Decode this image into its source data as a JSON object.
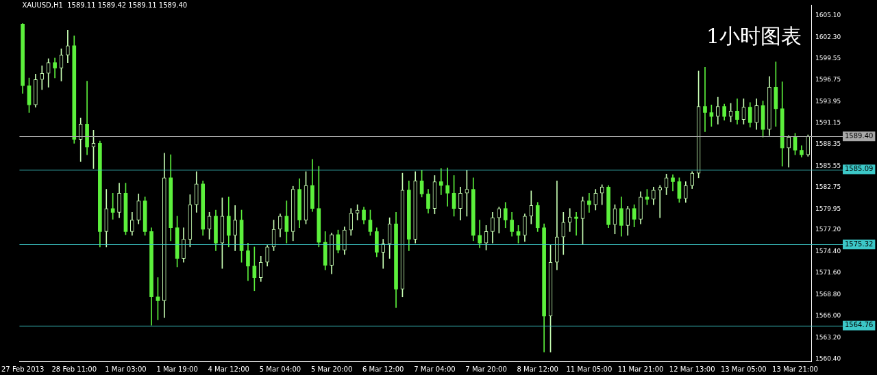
{
  "chart_data": {
    "type": "candlestick",
    "title": "XAUUSD,H1  1589.11 1589.42 1589.11 1589.40",
    "annotations": [
      "1小时图表"
    ],
    "colors": [
      "#5cf03c",
      "#5cf03c",
      "#c8ffb4",
      "#c8ffb4",
      "#c8ffb4",
      "#5cf03c",
      "#c8ffb4",
      "#c8ffb4",
      "#5cf03c",
      "#c8ffb4",
      "#5cf03c",
      "#c8ffb4",
      "#5cf03c",
      "#c8ffb4",
      "#5cf03c",
      "#c8ffb4",
      "#5cf03c",
      "#c8ffb4",
      "#c8ffb4",
      "#5cf03c",
      "#5cf03c",
      "#5cf03c",
      "#c8ffb4",
      "#5cf03c",
      "#5cf03c",
      "#c8ffb4",
      "#c8ffb4",
      "#c8ffb4",
      "#5cf03c",
      "#c8ffb4",
      "#5cf03c",
      "#c8ffb4",
      "#5cf03c",
      "#c8ffb4",
      "#5cf03c",
      "#5cf03c",
      "#5cf03c",
      "#c8ffb4",
      "#c8ffb4",
      "#c8ffb4",
      "#c8ffb4",
      "#5cf03c",
      "#c8ffb4",
      "#5cf03c",
      "#c8ffb4",
      "#5cf03c",
      "#5cf03c",
      "#5cf03c",
      "#c8ffb4",
      "#5cf03c",
      "#c8ffb4",
      "#c8ffb4",
      "#c8ffb4",
      "#5cf03c",
      "#5cf03c",
      "#5cf03c",
      "#c8ffb4",
      "#c8ffb4",
      "#5cf03c",
      "#c8ffb4",
      "#5cf03c",
      "#c8ffb4",
      "#5cf03c",
      "#5cf03c",
      "#c8ffb4",
      "#5cf03c",
      "#5cf03c",
      "#5cf03c",
      "#c8ffb4",
      "#c8ffb4",
      "#5cf03c",
      "#5cf03c",
      "#c8ffb4",
      "#c8ffb4",
      "#c8ffb4",
      "#5cf03c",
      "#5cf03c",
      "#5cf03c",
      "#c8ffb4",
      "#c8ffb4",
      "#5cf03c",
      "#5cf03c",
      "#c8ffb4",
      "#c8ffb4",
      "#c8ffb4",
      "#c8ffb4",
      "#5cf03c",
      "#c8ffb4",
      "#5cf03c",
      "#c8ffb4",
      "#c8ffb4",
      "#5cf03c",
      "#c8ffb4",
      "#5cf03c",
      "#c8ffb4",
      "#5cf03c",
      "#c8ffb4",
      "#5cf03c",
      "#c8ffb4",
      "#c8ffb4",
      "#c8ffb4",
      "#5cf03c",
      "#5cf03c",
      "#c8ffb4",
      "#c8ffb4",
      "#c8ffb4",
      "#5cf03c",
      "#5cf03c",
      "#c8ffb4",
      "#5cf03c",
      "#c8ffb4",
      "#5cf03c",
      "#c8ffb4",
      "#5cf03c",
      "#c8ffb4",
      "#5cf03c",
      "#c8ffb4",
      "#5cf03c",
      "#5cf03c",
      "#c8ffb4",
      "#5cf03c",
      "#5cf03c",
      "#c8ffb4"
    ],
    "categories": [
      "27 Feb 2013",
      null,
      null,
      null,
      null,
      null,
      null,
      null,
      "28 Feb 11:00",
      null,
      null,
      null,
      null,
      null,
      null,
      null,
      "1 Mar 03:00",
      null,
      null,
      null,
      null,
      null,
      null,
      null,
      "1 Mar 19:00",
      null,
      null,
      null,
      null,
      null,
      null,
      null,
      "4 Mar 12:00",
      null,
      null,
      null,
      null,
      null,
      null,
      null,
      "5 Mar 04:00",
      null,
      null,
      null,
      null,
      null,
      null,
      null,
      "5 Mar 20:00",
      null,
      null,
      null,
      null,
      null,
      null,
      null,
      "6 Mar 12:00",
      null,
      null,
      null,
      null,
      null,
      null,
      null,
      "7 Mar 04:00",
      null,
      null,
      null,
      null,
      null,
      null,
      null,
      "7 Mar 20:00",
      null,
      null,
      null,
      null,
      null,
      null,
      null,
      "8 Mar 12:00",
      null,
      null,
      null,
      null,
      null,
      null,
      null,
      "11 Mar 05:00",
      null,
      null,
      null,
      null,
      null,
      null,
      null,
      "11 Mar 21:00",
      null,
      null,
      null,
      null,
      null,
      null,
      null,
      "12 Mar 13:00",
      null,
      null,
      null,
      null,
      null,
      null,
      null,
      "13 Mar 05:00",
      null,
      null,
      null,
      null,
      null,
      null,
      null,
      "13 Mar 21:00",
      null,
      null
    ],
    "ohlc": [
      [
        1604,
        1604.1,
        1595,
        1596
      ],
      [
        1596,
        1597,
        1592.5,
        1593.5
      ],
      [
        1593.5,
        1597.5,
        1593.2,
        1596.8
      ],
      [
        1596.8,
        1598.6,
        1595.5,
        1597.6
      ],
      [
        1597.6,
        1599.5,
        1595.8,
        1599
      ],
      [
        1599,
        1599.6,
        1597,
        1598.3
      ],
      [
        1598.3,
        1600.8,
        1596.6,
        1600
      ],
      [
        1600,
        1603.2,
        1599,
        1601.2
      ],
      [
        1601.2,
        1602.5,
        1588.5,
        1589
      ],
      [
        1589,
        1591.8,
        1586.1,
        1591
      ],
      [
        1591,
        1596.6,
        1587,
        1588
      ],
      [
        1588,
        1590.2,
        1585.2,
        1588.5
      ],
      [
        1588.5,
        1588.8,
        1575,
        1577
      ],
      [
        1577,
        1582.5,
        1575,
        1580
      ],
      [
        1580,
        1582,
        1578.6,
        1579.5
      ],
      [
        1579.5,
        1583.3,
        1578.8,
        1582
      ],
      [
        1582,
        1583.3,
        1576.6,
        1577
      ],
      [
        1577,
        1579.5,
        1576.5,
        1578.5
      ],
      [
        1578.5,
        1581.9,
        1578,
        1581
      ],
      [
        1581,
        1581.5,
        1576.5,
        1577
      ],
      [
        1577,
        1577.5,
        1564.8,
        1568.5
      ],
      [
        1568.5,
        1571,
        1565.5,
        1568
      ],
      [
        1568,
        1587.2,
        1565.8,
        1584
      ],
      [
        1584,
        1587,
        1575.8,
        1577.5
      ],
      [
        1577.5,
        1579,
        1572.4,
        1573.5
      ],
      [
        1573.5,
        1577.5,
        1573,
        1576
      ],
      [
        1576,
        1581.8,
        1575,
        1580.5
      ],
      [
        1580.5,
        1584.8,
        1579.5,
        1583.2
      ],
      [
        1583.2,
        1583.6,
        1576.5,
        1577.3
      ],
      [
        1577.3,
        1579.5,
        1576,
        1579
      ],
      [
        1579,
        1579.8,
        1574.5,
        1575.5
      ],
      [
        1575.5,
        1581.4,
        1572.2,
        1579
      ],
      [
        1579,
        1581.5,
        1575,
        1576.5
      ],
      [
        1576.5,
        1580.4,
        1574.5,
        1578.5
      ],
      [
        1578.5,
        1579.8,
        1573,
        1574.5
      ],
      [
        1574.5,
        1575.5,
        1570.6,
        1572.5
      ],
      [
        1572.5,
        1575,
        1569.3,
        1571
      ],
      [
        1571,
        1573.8,
        1570.5,
        1573
      ],
      [
        1573,
        1575.2,
        1572.5,
        1575
      ],
      [
        1575,
        1578.5,
        1574.5,
        1577.3
      ],
      [
        1577.3,
        1579.3,
        1576.3,
        1579
      ],
      [
        1579,
        1581,
        1575.5,
        1577
      ],
      [
        1577,
        1582.9,
        1575.8,
        1582.5
      ],
      [
        1582.5,
        1583.9,
        1577.5,
        1578.5
      ],
      [
        1578.5,
        1584.8,
        1578,
        1583
      ],
      [
        1583,
        1586.4,
        1579.6,
        1580
      ],
      [
        1580,
        1585.5,
        1575,
        1575.6
      ],
      [
        1575.6,
        1577,
        1572,
        1572.6
      ],
      [
        1572.6,
        1576.8,
        1571.5,
        1576.6
      ],
      [
        1576.6,
        1577.2,
        1574.2,
        1574.6
      ],
      [
        1574.6,
        1577.6,
        1574,
        1577.2
      ],
      [
        1577.2,
        1580,
        1576.5,
        1579.4
      ],
      [
        1579.4,
        1580.5,
        1578.5,
        1579.8
      ],
      [
        1579.8,
        1580.2,
        1578,
        1578.5
      ],
      [
        1578.5,
        1579.8,
        1576.5,
        1577
      ],
      [
        1577,
        1577.5,
        1573.7,
        1574.3
      ],
      [
        1574.3,
        1576,
        1572.2,
        1575.4
      ],
      [
        1575.4,
        1578.8,
        1573.5,
        1578
      ],
      [
        1578,
        1579.5,
        1567.1,
        1569.5
      ],
      [
        1569.5,
        1584.6,
        1568.5,
        1582.4
      ],
      [
        1582.4,
        1583.6,
        1574.5,
        1576
      ],
      [
        1576,
        1584.8,
        1575.5,
        1583.6
      ],
      [
        1583.6,
        1585,
        1581.5,
        1581.9
      ],
      [
        1581.9,
        1582.5,
        1579.4,
        1580
      ],
      [
        1580,
        1584.3,
        1579.3,
        1583.5
      ],
      [
        1583.5,
        1585.2,
        1581.8,
        1583
      ],
      [
        1583,
        1585.3,
        1580.3,
        1582
      ],
      [
        1582,
        1584.3,
        1579,
        1580
      ],
      [
        1580,
        1582.8,
        1578.5,
        1582
      ],
      [
        1582,
        1585,
        1579,
        1582.5
      ],
      [
        1582.5,
        1584,
        1575.8,
        1576.5
      ],
      [
        1576.5,
        1578.5,
        1574.9,
        1575.5
      ],
      [
        1575.5,
        1577.8,
        1574.6,
        1577
      ],
      [
        1577,
        1579.5,
        1575.5,
        1578.8
      ],
      [
        1578.8,
        1580.2,
        1576.8,
        1580
      ],
      [
        1580,
        1580.8,
        1577.5,
        1578.5
      ],
      [
        1578.5,
        1579.5,
        1576.4,
        1577
      ],
      [
        1577,
        1577.8,
        1575.5,
        1576.5
      ],
      [
        1576.5,
        1579.3,
        1575.7,
        1579
      ],
      [
        1579,
        1582.3,
        1578,
        1580.4
      ],
      [
        1580.4,
        1580.8,
        1577,
        1577.5
      ],
      [
        1577.5,
        1578,
        1561.3,
        1566
      ],
      [
        1566,
        1575.3,
        1561.3,
        1573
      ],
      [
        1573,
        1583.6,
        1572,
        1576.3
      ],
      [
        1576.3,
        1579.5,
        1574,
        1578.2
      ],
      [
        1578.2,
        1580,
        1577,
        1578.9
      ],
      [
        1578.9,
        1579.5,
        1576.5,
        1578.7
      ],
      [
        1578.7,
        1581.5,
        1575.3,
        1581
      ],
      [
        1581,
        1582,
        1579.5,
        1580.5
      ],
      [
        1580.5,
        1582.5,
        1579.8,
        1582
      ],
      [
        1582,
        1583.1,
        1580.5,
        1582.8
      ],
      [
        1582.8,
        1583,
        1577.5,
        1577.9
      ],
      [
        1577.9,
        1580.5,
        1576.7,
        1580
      ],
      [
        1580,
        1581.5,
        1576.4,
        1577.8
      ],
      [
        1577.8,
        1580.3,
        1576.5,
        1580
      ],
      [
        1580,
        1580.5,
        1577.6,
        1578.6
      ],
      [
        1578.6,
        1582.2,
        1578,
        1581.5
      ],
      [
        1581.5,
        1582.5,
        1580.5,
        1581.2
      ],
      [
        1581.2,
        1582.8,
        1580.5,
        1582.4
      ],
      [
        1582.4,
        1583,
        1578.8,
        1582.7
      ],
      [
        1582.7,
        1584.5,
        1581.8,
        1584
      ],
      [
        1584,
        1584.4,
        1582.3,
        1583.5
      ],
      [
        1583.5,
        1584,
        1580.8,
        1581.3
      ],
      [
        1581.3,
        1583.5,
        1580.8,
        1583
      ],
      [
        1583,
        1584.8,
        1582.6,
        1584.6
      ],
      [
        1584.6,
        1597.9,
        1584,
        1593.3
      ],
      [
        1593.3,
        1598.4,
        1590,
        1592.5
      ],
      [
        1592.5,
        1593.5,
        1590.7,
        1592
      ],
      [
        1592,
        1594.5,
        1591,
        1593.3
      ],
      [
        1593.3,
        1593.6,
        1591.5,
        1592
      ],
      [
        1592,
        1593.7,
        1591.3,
        1592.7
      ],
      [
        1592.7,
        1594.3,
        1591,
        1591.6
      ],
      [
        1591.6,
        1594.3,
        1591,
        1593.2
      ],
      [
        1593.2,
        1593.8,
        1590.6,
        1591.2
      ],
      [
        1591.2,
        1594.3,
        1590.3,
        1593.4
      ],
      [
        1593.4,
        1594,
        1589.3,
        1590.3
      ],
      [
        1590.3,
        1597.2,
        1589.5,
        1595.8
      ],
      [
        1595.8,
        1599.1,
        1590.7,
        1593
      ],
      [
        1593,
        1596.5,
        1585.5,
        1587.9
      ],
      [
        1587.9,
        1589.5,
        1585.4,
        1589.3
      ],
      [
        1589.3,
        1589.8,
        1587,
        1587.6
      ],
      [
        1587.6,
        1588.2,
        1586.7,
        1587
      ],
      [
        1587,
        1589.6,
        1586.8,
        1589.4
      ]
    ],
    "ylim": [
      1560.1,
      1606.5
    ],
    "yticks": [
      {
        "value": 1560.4,
        "label": "1560.40"
      },
      {
        "value": 1563.2,
        "label": "1563.20"
      },
      {
        "value": 1566,
        "label": "1566.00"
      },
      {
        "value": 1568.8,
        "label": "1568.80"
      },
      {
        "value": 1571.6,
        "label": "1571.60"
      },
      {
        "value": 1574.4,
        "label": "1574.40"
      },
      {
        "value": 1577.2,
        "label": "1577.20"
      },
      {
        "value": 1579.95,
        "label": "1579.95"
      },
      {
        "value": 1582.75,
        "label": "1582.75"
      },
      {
        "value": 1585.55,
        "label": "1585.55"
      },
      {
        "value": 1588.35,
        "label": "1588.35"
      },
      {
        "value": 1591.15,
        "label": "1591.15"
      },
      {
        "value": 1593.95,
        "label": "1593.95"
      },
      {
        "value": 1596.75,
        "label": "1596.75"
      },
      {
        "value": 1599.55,
        "label": "1599.55"
      },
      {
        "value": 1602.3,
        "label": "1602.30"
      },
      {
        "value": 1605.1,
        "label": "1605.10"
      }
    ],
    "ref_lines": [
      {
        "axis": "y",
        "value": 1589.4,
        "label": "1589.40",
        "color": "#a8a8a8"
      },
      {
        "axis": "y",
        "value": 1585.09,
        "label": "1585.09",
        "color": "#3cc8c8"
      },
      {
        "axis": "y",
        "value": 1575.32,
        "label": "1575.32",
        "color": "#3cc8c8"
      },
      {
        "axis": "y",
        "value": 1564.76,
        "label": "1564.76",
        "color": "#3cc8c8"
      }
    ],
    "grid": false,
    "legend": false
  }
}
